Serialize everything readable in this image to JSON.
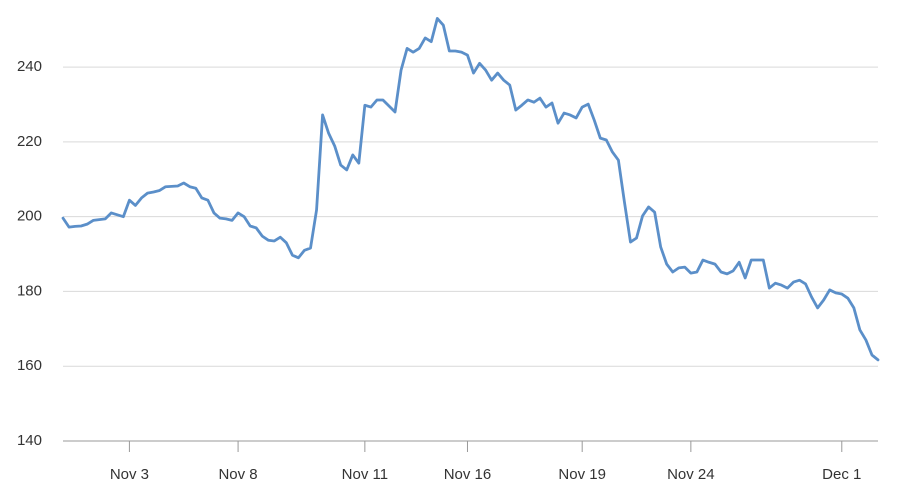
{
  "chart_data": {
    "type": "line",
    "categories": [
      null,
      null,
      null,
      null,
      null,
      null,
      null,
      null,
      null,
      null,
      null,
      "Nov 3",
      null,
      null,
      null,
      null,
      null,
      null,
      null,
      null,
      null,
      null,
      null,
      null,
      null,
      null,
      null,
      null,
      null,
      "Nov 8",
      null,
      null,
      null,
      null,
      null,
      null,
      null,
      null,
      null,
      null,
      null,
      null,
      null,
      null,
      null,
      null,
      null,
      null,
      null,
      null,
      "Nov 11",
      null,
      null,
      null,
      null,
      null,
      null,
      null,
      null,
      null,
      null,
      null,
      null,
      null,
      null,
      null,
      null,
      "Nov 16",
      null,
      null,
      null,
      null,
      null,
      null,
      null,
      null,
      null,
      null,
      null,
      null,
      null,
      null,
      null,
      null,
      null,
      null,
      "Nov 19",
      null,
      null,
      null,
      null,
      null,
      null,
      null,
      null,
      null,
      null,
      null,
      null,
      null,
      null,
      null,
      null,
      null,
      "Nov 24",
      null,
      null,
      null,
      null,
      null,
      null,
      null,
      null,
      null,
      null,
      null,
      null,
      null,
      null,
      null,
      null,
      null,
      null,
      null,
      null,
      null,
      null,
      null,
      null,
      "Dec 1",
      null,
      null,
      null,
      null,
      null,
      null
    ],
    "series": [
      {
        "color": "#5b8fc9",
        "values": [
          199.6,
          197.2,
          197.4,
          197.5,
          198,
          199,
          199.2,
          199.4,
          201,
          200.5,
          200,
          204.4,
          203,
          205,
          206.3,
          206.6,
          207,
          208,
          208.1,
          208.2,
          209,
          208,
          207.6,
          205,
          204.4,
          201,
          199.6,
          199.4,
          199,
          201,
          200,
          197.5,
          197,
          194.8,
          193.7,
          193.5,
          194.5,
          193,
          189.7,
          189,
          191,
          191.6,
          201.8,
          227.2,
          222.3,
          218.9,
          213.8,
          212.5,
          216.5,
          214.3,
          229.8,
          229.3,
          231.2,
          231.2,
          229.6,
          228,
          239.2,
          245,
          244,
          245,
          247.8,
          246.8,
          253,
          251.2,
          244.3,
          244.3,
          244,
          243.2,
          238.4,
          241,
          239.2,
          236.5,
          238.4,
          236.5,
          235.2,
          228.5,
          229.8,
          231.2,
          230.6,
          231.7,
          229.3,
          230.4,
          225,
          227.7,
          227.2,
          226.4,
          229.3,
          230.1,
          225.8,
          221,
          220.5,
          217.3,
          215.1,
          203.9,
          193.2,
          194.3,
          200.2,
          202.6,
          201.2,
          191.9,
          187.3,
          185.2,
          186.3,
          186.5,
          184.9,
          185.2,
          188.4,
          187.8,
          187.3,
          185.2,
          184.7,
          185.5,
          187.8,
          183.6,
          188.4,
          188.4,
          188.4,
          180.9,
          182.2,
          181.7,
          180.9,
          182.5,
          183,
          182,
          178.5,
          175.6,
          177.7,
          180.4,
          179.6,
          179.3,
          178.2,
          175.6,
          169.7,
          167,
          163,
          161.7
        ]
      }
    ],
    "ylim": [
      140,
      255
    ],
    "yticks": [
      140,
      160,
      180,
      200,
      220,
      240
    ],
    "grid": true
  }
}
